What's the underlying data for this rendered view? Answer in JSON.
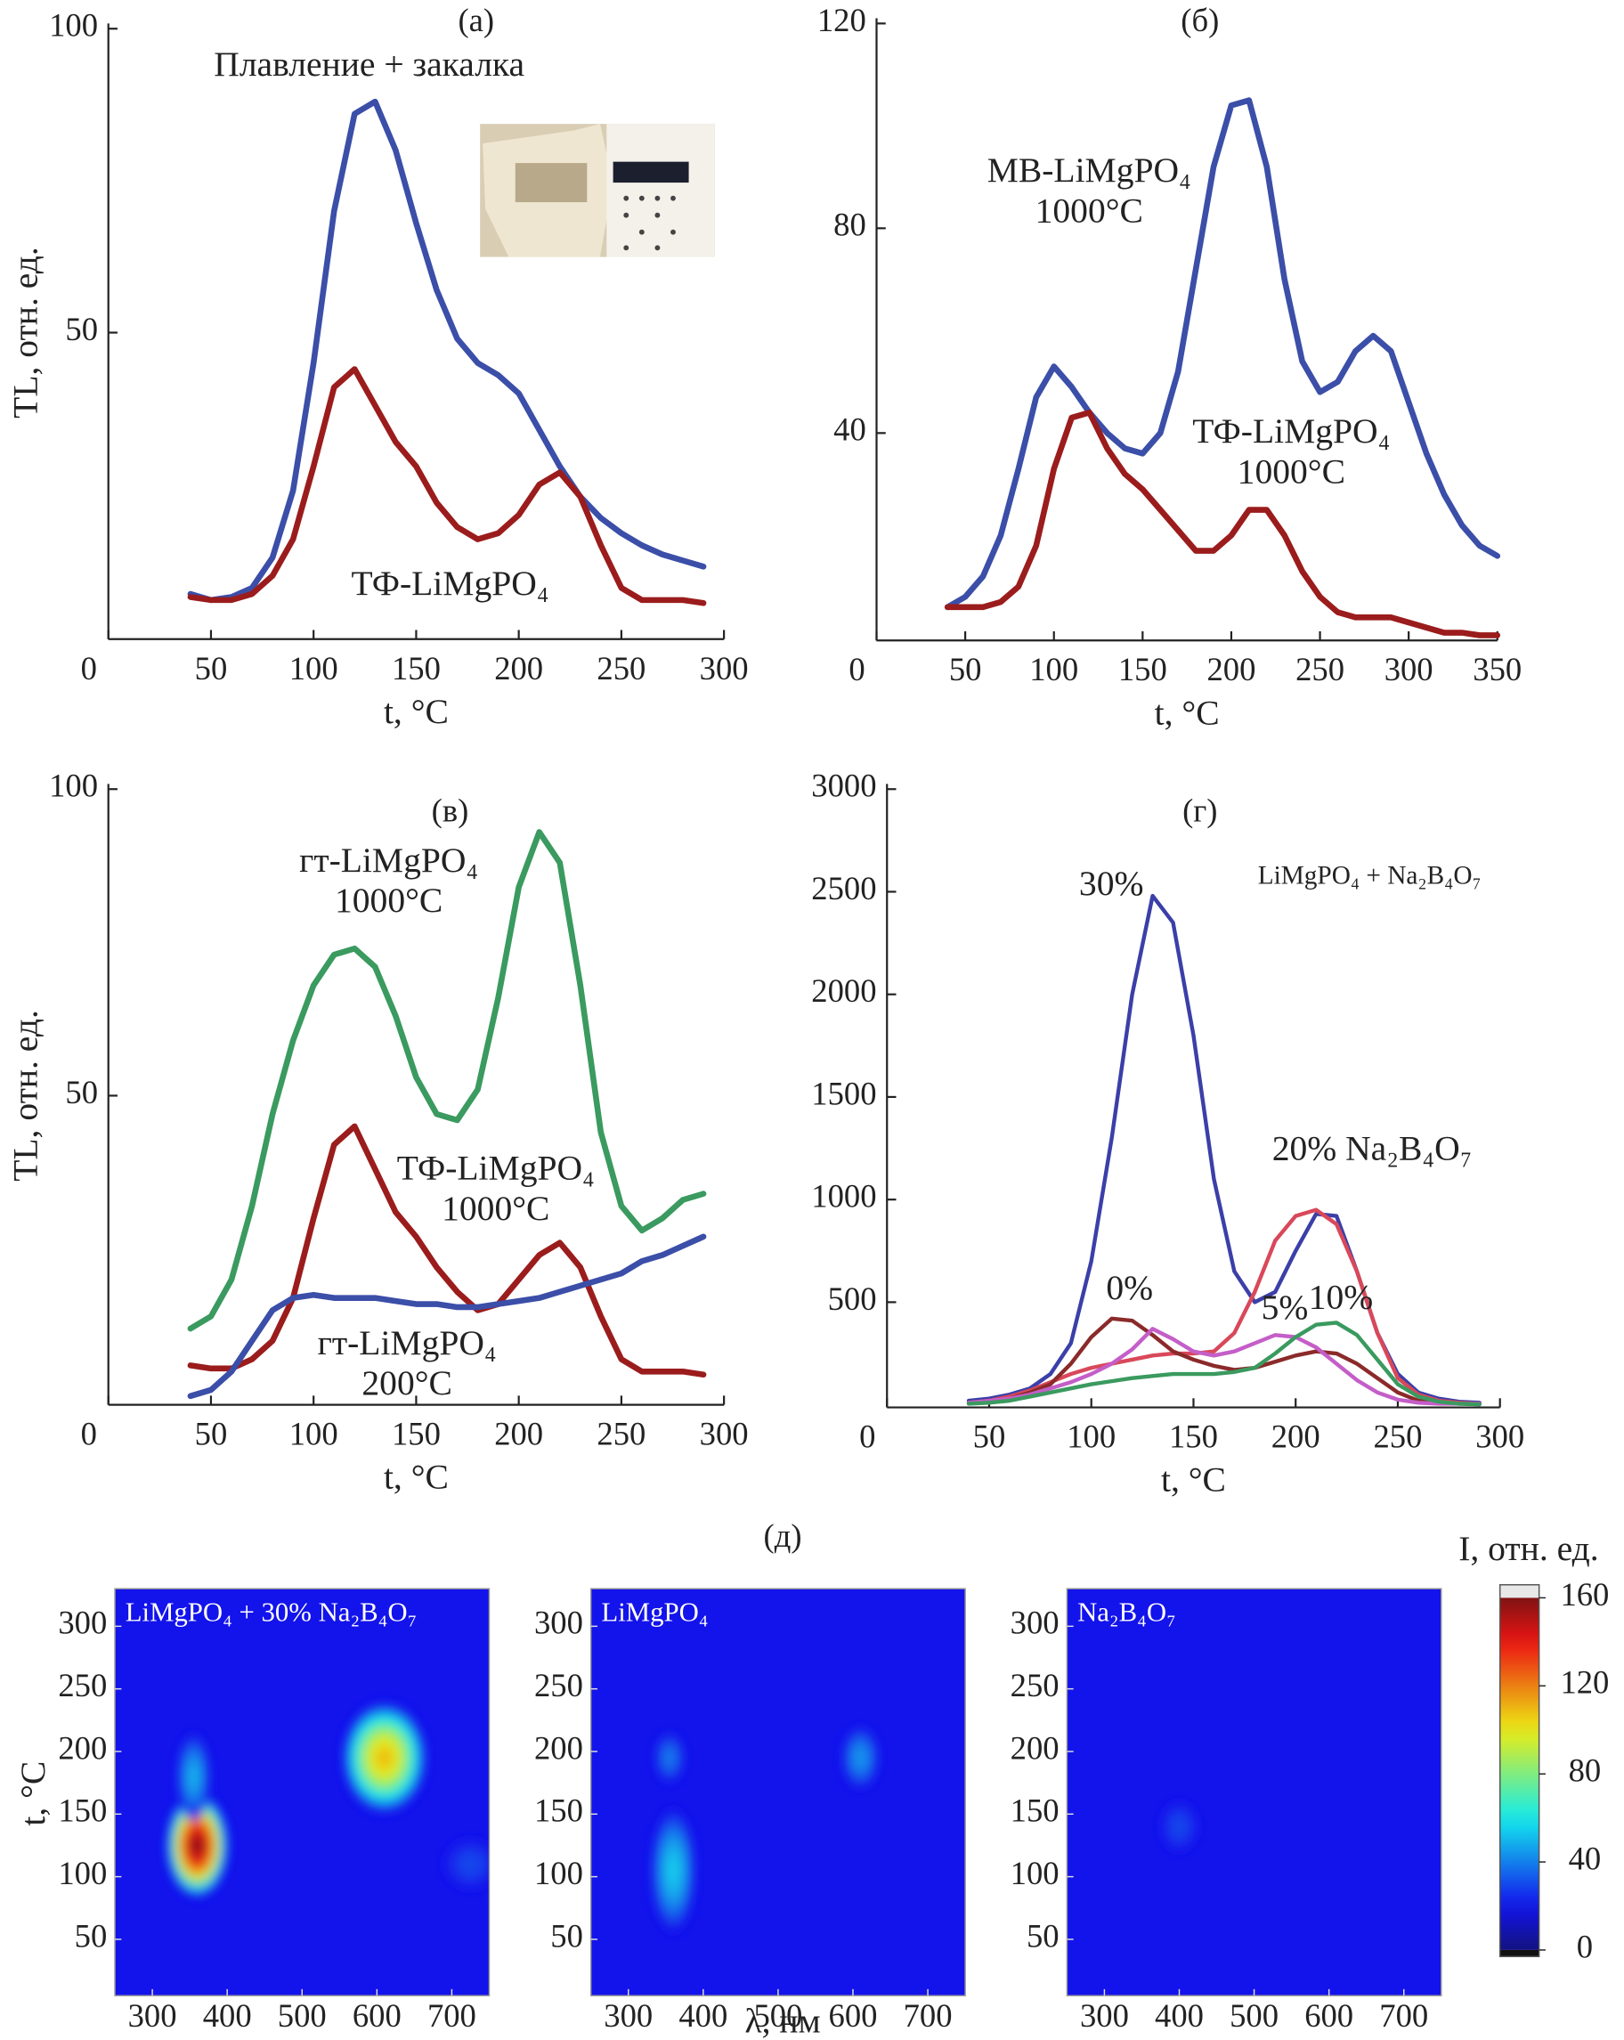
{
  "chart_data": [
    {
      "type": "line",
      "title": "(а)",
      "xlabel": "t, °C",
      "ylabel": "TL, отн. ед.",
      "xlim": [
        0,
        300
      ],
      "ylim": [
        0,
        100
      ],
      "xticks": [
        0,
        50,
        100,
        150,
        200,
        250,
        300
      ],
      "yticks": [
        50,
        100
      ],
      "x": [
        40,
        50,
        60,
        70,
        80,
        90,
        100,
        110,
        120,
        130,
        140,
        150,
        160,
        170,
        180,
        190,
        200,
        210,
        220,
        230,
        240,
        250,
        260,
        270,
        280,
        290
      ],
      "series": [
        {
          "name": "Плавление + закалка",
          "color": "#3b4ea8",
          "values": [
            7,
            6,
            6.5,
            8,
            13,
            24,
            45,
            70,
            86,
            88,
            80,
            68,
            57,
            49,
            45,
            43,
            40,
            34,
            28,
            23,
            19.5,
            17,
            15,
            13.5,
            12.5,
            11.5
          ]
        },
        {
          "name": "ТФ-LiMgPO₄",
          "color": "#9b1c1c",
          "values": [
            6.5,
            6,
            6,
            7,
            10,
            16,
            28,
            41,
            44,
            38,
            32,
            28,
            22,
            18,
            16,
            17,
            20,
            25,
            27,
            23,
            15,
            8,
            6,
            6,
            6,
            5.5
          ]
        }
      ]
    },
    {
      "type": "line",
      "title": "(б)",
      "xlabel": "t, °C",
      "xlim": [
        0,
        350
      ],
      "ylim": [
        0,
        120
      ],
      "xticks": [
        0,
        50,
        100,
        150,
        200,
        250,
        300,
        350
      ],
      "yticks": [
        40,
        80,
        120
      ],
      "x": [
        40,
        50,
        60,
        70,
        80,
        90,
        100,
        110,
        120,
        130,
        140,
        150,
        160,
        170,
        180,
        190,
        200,
        210,
        220,
        230,
        240,
        250,
        260,
        270,
        280,
        290,
        300,
        310,
        320,
        330,
        340,
        350
      ],
      "series": [
        {
          "name": "МВ-LiMgPO₄",
          "note": "1000°C",
          "color": "#3b4ea8",
          "values": [
            6,
            8,
            12,
            20,
            33,
            47,
            53,
            49,
            44,
            40,
            37,
            36,
            40,
            52,
            72,
            92,
            104,
            105,
            92,
            70,
            54,
            48,
            50,
            56,
            59,
            56,
            46,
            36,
            28,
            22,
            18,
            16
          ]
        },
        {
          "name": "ТФ-LiMgPO₄",
          "note": "1000°C",
          "color": "#9b1c1c",
          "values": [
            6,
            6,
            6,
            7,
            10,
            18,
            33,
            43,
            44,
            37,
            32,
            29,
            25,
            21,
            17,
            17,
            20,
            25,
            25,
            20,
            13,
            8,
            5,
            4,
            4,
            4,
            3,
            2,
            1,
            1,
            0.5,
            0.5
          ]
        }
      ]
    },
    {
      "type": "line",
      "title": "(в)",
      "xlabel": "t, °C",
      "ylabel": "TL, отн. ед.",
      "xlim": [
        0,
        300
      ],
      "ylim": [
        0,
        100
      ],
      "xticks": [
        0,
        50,
        100,
        150,
        200,
        250,
        300
      ],
      "yticks": [
        50,
        100
      ],
      "x": [
        40,
        50,
        60,
        70,
        80,
        90,
        100,
        110,
        120,
        130,
        140,
        150,
        160,
        170,
        180,
        190,
        200,
        210,
        220,
        230,
        240,
        250,
        260,
        270,
        280,
        290
      ],
      "series": [
        {
          "name": "гт-LiMgPO₄",
          "note": "1000°C",
          "color": "#3a9a5f",
          "values": [
            12,
            14,
            20,
            32,
            47,
            59,
            68,
            73,
            74,
            71,
            63,
            53,
            47,
            46,
            51,
            66,
            84,
            93,
            88,
            68,
            44,
            32,
            28,
            30,
            33,
            34
          ]
        },
        {
          "name": "ТФ-LiMgPO₄",
          "note": "1000°C",
          "color": "#9b1c1c",
          "values": [
            6,
            5.5,
            5.5,
            7,
            10,
            17,
            30,
            42,
            45,
            38,
            31,
            27,
            22,
            18,
            15,
            16,
            20,
            24,
            26,
            22,
            14,
            7,
            5,
            5,
            5,
            4.5
          ]
        },
        {
          "name": "гт-LiMgPO₄",
          "note": "200°C",
          "color": "#3b4ea8",
          "values": [
            1,
            2,
            5,
            10,
            15,
            17,
            17.5,
            17,
            17,
            17,
            16.5,
            16,
            16,
            15.5,
            15.5,
            16,
            16.5,
            17,
            18,
            19,
            20,
            21,
            23,
            24,
            25.5,
            27
          ]
        }
      ]
    },
    {
      "type": "line",
      "title": "(г)",
      "xlabel": "t, °C",
      "annotation": "LiMgPO₄ + Na₂B₄O₇",
      "xlim": [
        0,
        300
      ],
      "ylim": [
        0,
        3000
      ],
      "xticks": [
        0,
        50,
        100,
        150,
        200,
        250,
        300
      ],
      "yticks": [
        500,
        1000,
        1500,
        2000,
        2500,
        3000
      ],
      "x": [
        40,
        50,
        60,
        70,
        80,
        90,
        100,
        110,
        120,
        130,
        140,
        150,
        160,
        170,
        180,
        190,
        200,
        210,
        220,
        230,
        240,
        250,
        260,
        270,
        280,
        290
      ],
      "series": [
        {
          "name": "30%",
          "color": "#3b3fa8",
          "values": [
            20,
            30,
            50,
            80,
            150,
            300,
            700,
            1300,
            2000,
            2480,
            2350,
            1800,
            1100,
            650,
            500,
            550,
            750,
            930,
            920,
            650,
            350,
            150,
            60,
            30,
            15,
            10
          ]
        },
        {
          "name": "20% Na₂B₄O₇",
          "color": "#d9485a",
          "values": [
            10,
            20,
            40,
            70,
            110,
            150,
            180,
            200,
            220,
            240,
            250,
            250,
            260,
            350,
            550,
            800,
            920,
            950,
            880,
            650,
            350,
            130,
            50,
            20,
            10,
            5
          ]
        },
        {
          "name": "0%",
          "color": "#8b2a2a",
          "values": [
            10,
            20,
            30,
            60,
            100,
            200,
            330,
            420,
            410,
            340,
            260,
            220,
            190,
            170,
            180,
            210,
            240,
            260,
            250,
            200,
            130,
            60,
            20,
            10,
            5,
            5
          ]
        },
        {
          "name": "5%",
          "color": "#c45ec8",
          "values": [
            10,
            20,
            30,
            50,
            80,
            110,
            150,
            200,
            270,
            370,
            320,
            260,
            240,
            260,
            300,
            340,
            330,
            280,
            200,
            120,
            60,
            25,
            10,
            5,
            5,
            5
          ]
        },
        {
          "name": "10%",
          "color": "#3a9a5f",
          "values": [
            5,
            10,
            20,
            40,
            60,
            80,
            100,
            115,
            130,
            140,
            150,
            150,
            150,
            160,
            180,
            250,
            330,
            390,
            400,
            340,
            220,
            100,
            40,
            15,
            5,
            2
          ]
        }
      ]
    },
    {
      "type": "heatmap",
      "title": "(д)",
      "xlabel": "λ, нм",
      "ylabel": "t, °C",
      "xlim": [
        250,
        750
      ],
      "ylim": [
        5,
        330
      ],
      "xticks": [
        300,
        400,
        500,
        600,
        700
      ],
      "yticks": [
        50,
        100,
        150,
        200,
        250,
        300
      ],
      "background": 20,
      "colorbar": {
        "label": "I, отн. ед.",
        "lim": [
          0,
          160
        ],
        "ticks": [
          0,
          40,
          80,
          120,
          160
        ]
      },
      "panels": [
        {
          "label": "LiMgPO₄ + 30% Na₂B₄O₇",
          "spots": [
            {
              "x": 360,
              "y": 125,
              "value": 160,
              "width": 85,
              "height": 85
            },
            {
              "x": 355,
              "y": 180,
              "value": 50,
              "width": 45,
              "height": 70
            },
            {
              "x": 610,
              "y": 195,
              "value": 110,
              "width": 115,
              "height": 90
            },
            {
              "x": 725,
              "y": 110,
              "value": 30,
              "width": 70,
              "height": 40
            }
          ]
        },
        {
          "label": "LiMgPO₄",
          "spots": [
            {
              "x": 360,
              "y": 105,
              "value": 55,
              "width": 60,
              "height": 100
            },
            {
              "x": 355,
              "y": 195,
              "value": 40,
              "width": 40,
              "height": 40
            },
            {
              "x": 610,
              "y": 195,
              "value": 45,
              "width": 50,
              "height": 50
            }
          ]
        },
        {
          "label": "Na₂B₄O₇",
          "spots": [
            {
              "x": 400,
              "y": 140,
              "value": 30,
              "width": 50,
              "height": 40
            }
          ]
        }
      ]
    }
  ]
}
